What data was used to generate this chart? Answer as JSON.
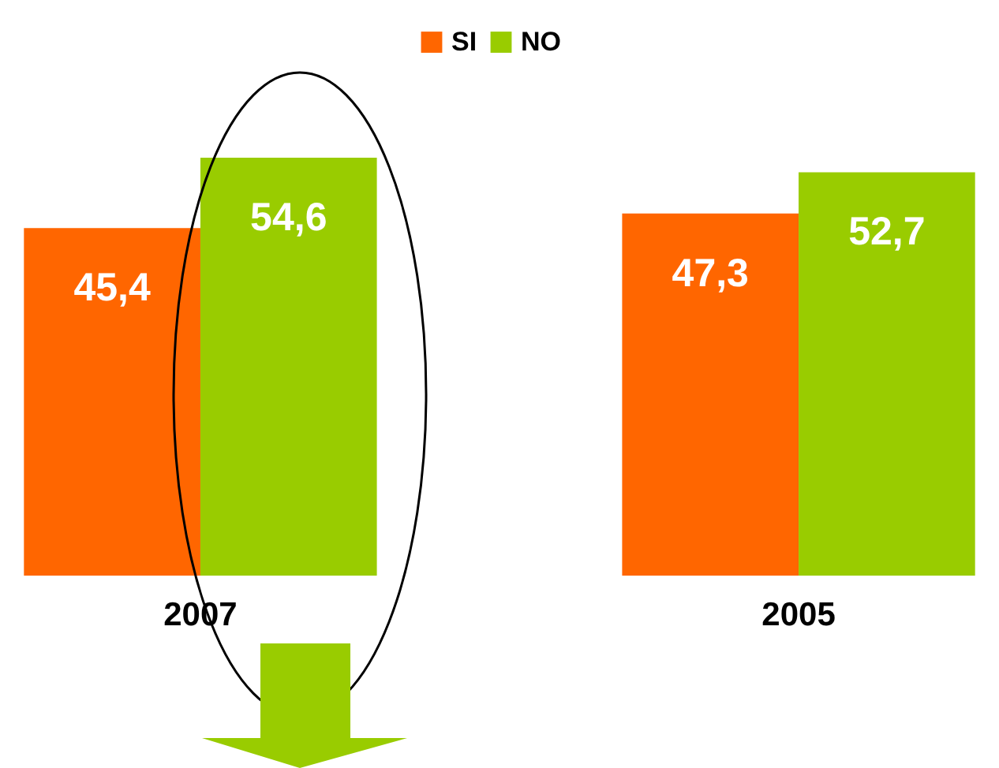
{
  "chart_data": {
    "type": "bar",
    "categories": [
      "2007",
      "2005"
    ],
    "series": [
      {
        "name": "SI",
        "color": "#ff6600",
        "values": [
          45.4,
          47.3
        ],
        "value_labels": [
          "45,4",
          "47,3"
        ]
      },
      {
        "name": "NO",
        "color": "#99cc00",
        "values": [
          54.6,
          52.7
        ],
        "value_labels": [
          "54,6",
          "52,7"
        ]
      }
    ],
    "legend": "top"
  }
}
